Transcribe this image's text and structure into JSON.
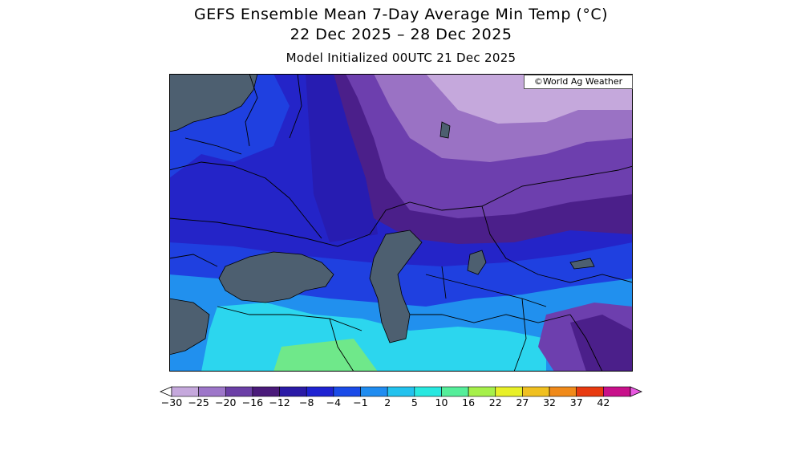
{
  "header": {
    "title": "GEFS Ensemble Mean 7-Day Average Min Temp (°C)",
    "date_range": "22 Dec 2025 – 28 Dec 2025",
    "model_init": "Model Initialized 00UTC 21 Dec 2025"
  },
  "credit": "©World Ag Weather",
  "legend": {
    "ticks": [
      "−30",
      "−25",
      "−20",
      "−16",
      "−12",
      "−8",
      "−4",
      "−1",
      "2",
      "5",
      "10",
      "16",
      "22",
      "27",
      "32",
      "37",
      "42"
    ],
    "colors": [
      "#e9d9ee",
      "#c5a8dc",
      "#9d76c9",
      "#6b3fa6",
      "#4a1a7a",
      "#2a1aa6",
      "#1e22d2",
      "#1a4be8",
      "#1f8cf0",
      "#23c2ee",
      "#28e8e0",
      "#55ee9a",
      "#a6f04a",
      "#e8f028",
      "#f0c020",
      "#f08a1a",
      "#e83a10",
      "#c8108a",
      "#e858e0"
    ]
  },
  "colors": {
    "water": "#4d5f70",
    "very_cold": "#9a72c4",
    "cold_purple": "#6d3fae",
    "deep_purple": "#4b1f8a",
    "blue": "#2424c8",
    "mid_blue": "#1f40e0",
    "light_blue": "#2190ee",
    "cyan": "#2cd6ee",
    "green": "#6fe88a"
  }
}
